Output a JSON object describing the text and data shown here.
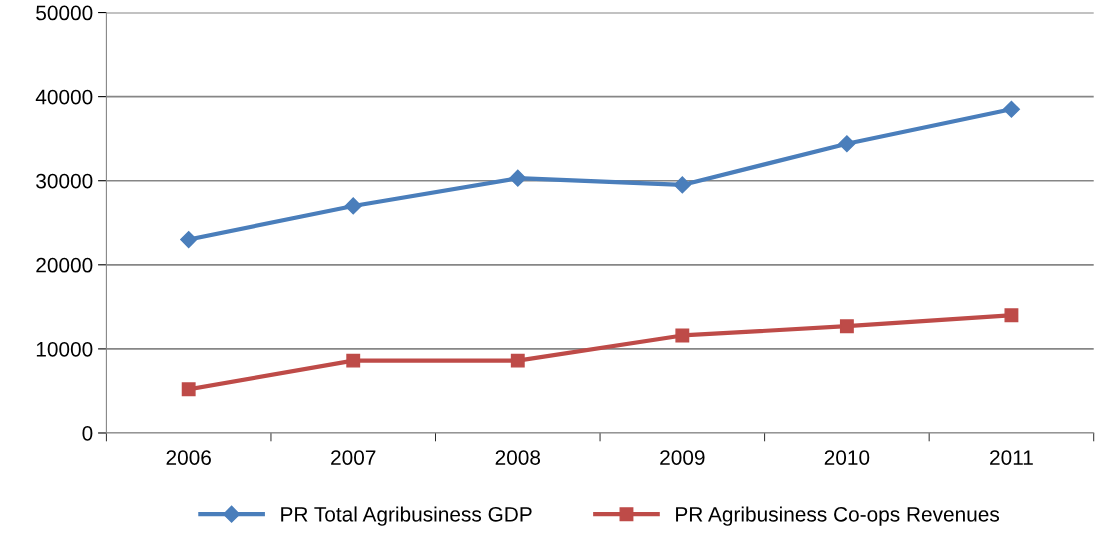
{
  "chart_data": {
    "type": "line",
    "categories": [
      "2006",
      "2007",
      "2008",
      "2009",
      "2010",
      "2011"
    ],
    "series": [
      {
        "name": "PR Total Agribusiness GDP",
        "color": "#4a7ebb",
        "marker": "diamond",
        "values": [
          23000,
          27000,
          30300,
          29500,
          34400,
          38500
        ]
      },
      {
        "name": "PR Agribusiness Co-ops Revenues",
        "color": "#be4b48",
        "marker": "square",
        "values": [
          5200,
          8600,
          8600,
          11600,
          12700,
          14000
        ]
      }
    ],
    "ylim": [
      0,
      50000
    ],
    "yticks": [
      0,
      10000,
      20000,
      30000,
      40000,
      50000
    ],
    "grid": "y",
    "legend": "bottom",
    "line_style": "solid"
  }
}
